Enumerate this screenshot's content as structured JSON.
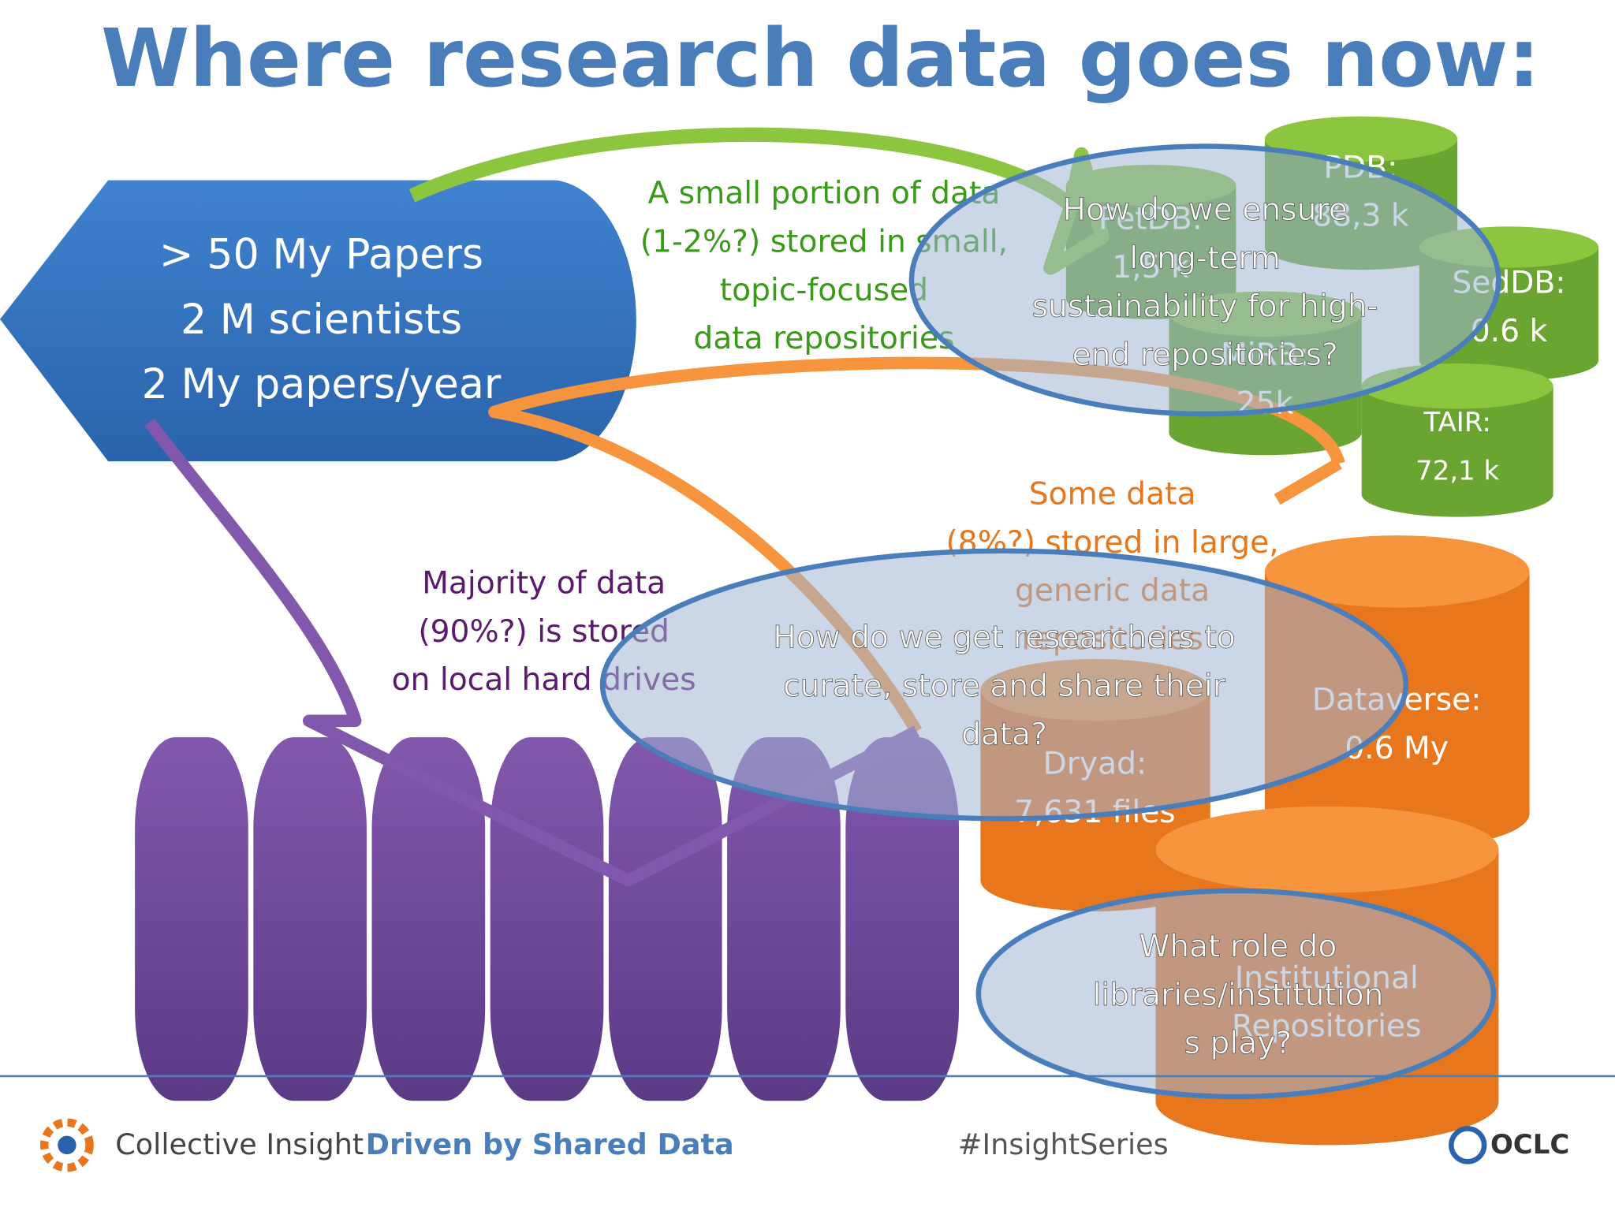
{
  "title": "Where research data goes now:",
  "source_box": {
    "lines": [
      "> 50 My Papers",
      "2 M scientists",
      "2 My papers/year"
    ]
  },
  "flows": [
    {
      "lines": [
        "A small portion of data",
        "(1-2%?) stored in small,",
        "topic-focused",
        "data repositories"
      ]
    },
    {
      "lines": [
        "Some data",
        "(8%?) stored in large,",
        "generic data",
        "repositories"
      ]
    },
    {
      "lines": [
        "Majority of data",
        "(90%?)  is stored",
        "on local hard drives"
      ]
    }
  ],
  "repositories": [
    {
      "lines": [
        "PDB:",
        "88,3 k"
      ]
    },
    {
      "lines": [
        "PetDB:",
        "1,5 k"
      ]
    },
    {
      "lines": [
        "SedDB:",
        "0.6 k"
      ]
    },
    {
      "lines": [
        "MiRB:",
        "25k"
      ]
    },
    {
      "lines": [
        "TAIR:",
        "72,1 k"
      ]
    },
    {
      "lines": [
        "Dataverse:",
        "0.6 My"
      ]
    },
    {
      "lines": [
        "Dryad:",
        "7,631 files"
      ]
    },
    {
      "lines": [
        "Institutional",
        "Repositories"
      ]
    }
  ],
  "questions": [
    {
      "lines": [
        "How do we ensure",
        "long-term",
        "sustainability for high-",
        "end repositories?"
      ]
    },
    {
      "lines": [
        "How do we get researchers to",
        "curate, store and share their",
        "data?"
      ]
    },
    {
      "lines": [
        "What role do",
        "libraries/institution",
        "s play?"
      ]
    }
  ],
  "footer": {
    "brand": "Collective Insight",
    "tagline": "Driven by Shared Data",
    "hashtag": "#InsightSeries",
    "logo": "OCLC"
  }
}
